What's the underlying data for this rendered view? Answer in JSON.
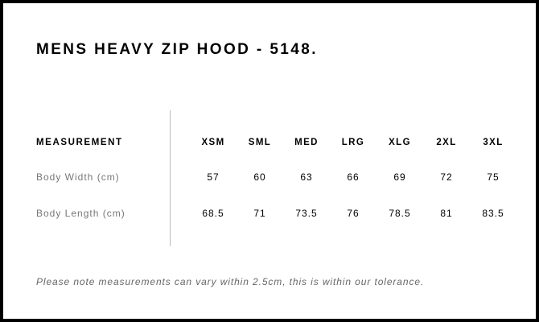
{
  "title": "MENS HEAVY ZIP HOOD - 5148.",
  "table": {
    "header_label": "MEASUREMENT",
    "sizes": [
      "XSM",
      "SML",
      "MED",
      "LRG",
      "XLG",
      "2XL",
      "3XL"
    ],
    "rows": [
      {
        "label": "Body Width (cm)",
        "values": [
          "57",
          "60",
          "63",
          "66",
          "69",
          "72",
          "75"
        ]
      },
      {
        "label": "Body Length (cm)",
        "values": [
          "68.5",
          "71",
          "73.5",
          "76",
          "78.5",
          "81",
          "83.5"
        ]
      }
    ]
  },
  "note": "Please note measurements can vary within 2.5cm, this is within our tolerance."
}
